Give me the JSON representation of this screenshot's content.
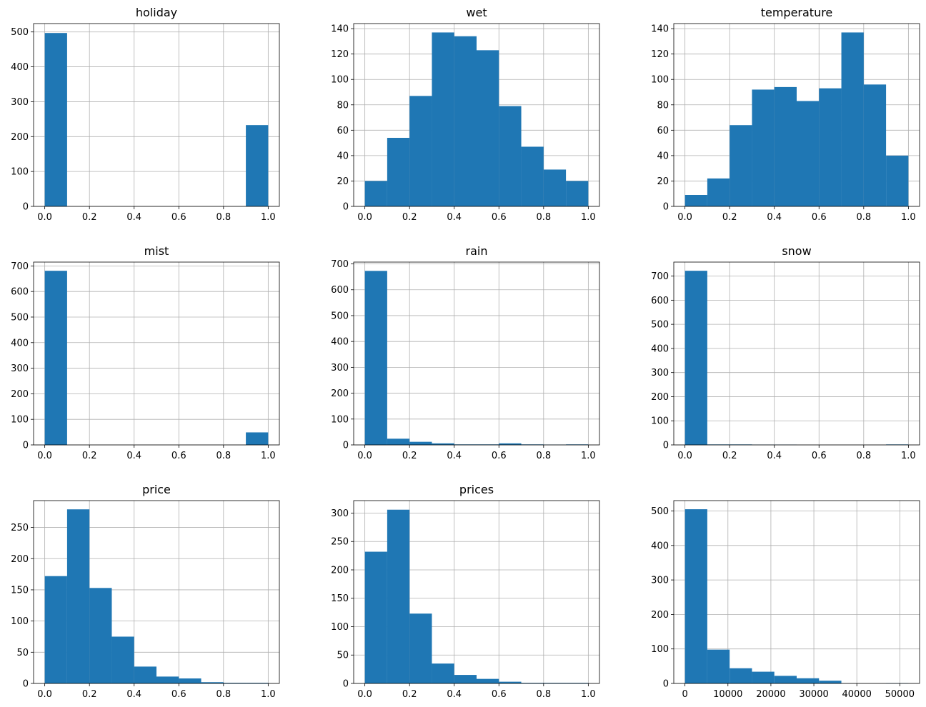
{
  "style": {
    "bar_color": "#1f77b4",
    "grid_color": "#b0b0b0",
    "axis_color": "#000000",
    "background": "#ffffff"
  },
  "chart_data": [
    {
      "type": "bar",
      "title": "holiday",
      "bin_edges": [
        0,
        0.1,
        0.2,
        0.3,
        0.4,
        0.5,
        0.6,
        0.7,
        0.8,
        0.9,
        1.0
      ],
      "values": [
        497,
        0,
        0,
        0,
        0,
        0,
        0,
        0,
        0,
        233
      ],
      "xlim": [
        -0.05,
        1.05
      ],
      "ylim": [
        0,
        524
      ],
      "xticks": [
        0,
        0.2,
        0.4,
        0.6,
        0.8,
        1.0
      ],
      "xtick_labels": [
        "0.0",
        "0.2",
        "0.4",
        "0.6",
        "0.8",
        "1.0"
      ],
      "yticks": [
        0,
        100,
        200,
        300,
        400,
        500
      ],
      "ytick_labels": [
        "0",
        "100",
        "200",
        "300",
        "400",
        "500"
      ],
      "grid": true
    },
    {
      "type": "bar",
      "title": "wet",
      "bin_edges": [
        0,
        0.1,
        0.2,
        0.3,
        0.4,
        0.5,
        0.6,
        0.7,
        0.8,
        0.9,
        1.0
      ],
      "values": [
        20,
        54,
        87,
        137,
        134,
        123,
        79,
        47,
        29,
        20
      ],
      "xlim": [
        -0.05,
        1.05
      ],
      "ylim": [
        0,
        144
      ],
      "xticks": [
        0,
        0.2,
        0.4,
        0.6,
        0.8,
        1.0
      ],
      "xtick_labels": [
        "0.0",
        "0.2",
        "0.4",
        "0.6",
        "0.8",
        "1.0"
      ],
      "yticks": [
        0,
        20,
        40,
        60,
        80,
        100,
        120,
        140
      ],
      "ytick_labels": [
        "0",
        "20",
        "40",
        "60",
        "80",
        "100",
        "120",
        "140"
      ],
      "grid": true
    },
    {
      "type": "bar",
      "title": "temperature",
      "bin_edges": [
        0,
        0.1,
        0.2,
        0.3,
        0.4,
        0.5,
        0.6,
        0.7,
        0.8,
        0.9,
        1.0
      ],
      "values": [
        9,
        22,
        64,
        92,
        94,
        83,
        93,
        137,
        96,
        40
      ],
      "xlim": [
        -0.05,
        1.05
      ],
      "ylim": [
        0,
        144
      ],
      "xticks": [
        0,
        0.2,
        0.4,
        0.6,
        0.8,
        1.0
      ],
      "xtick_labels": [
        "0.0",
        "0.2",
        "0.4",
        "0.6",
        "0.8",
        "1.0"
      ],
      "yticks": [
        0,
        20,
        40,
        60,
        80,
        100,
        120,
        140
      ],
      "ytick_labels": [
        "0",
        "20",
        "40",
        "60",
        "80",
        "100",
        "120",
        "140"
      ],
      "grid": true
    },
    {
      "type": "bar",
      "title": "mist",
      "bin_edges": [
        0,
        0.1,
        0.2,
        0.3,
        0.4,
        0.5,
        0.6,
        0.7,
        0.8,
        0.9,
        1.0
      ],
      "values": [
        681,
        0,
        0,
        0,
        0,
        0,
        0,
        0,
        0,
        49
      ],
      "xlim": [
        -0.05,
        1.05
      ],
      "ylim": [
        0,
        715
      ],
      "xticks": [
        0,
        0.2,
        0.4,
        0.6,
        0.8,
        1.0
      ],
      "xtick_labels": [
        "0.0",
        "0.2",
        "0.4",
        "0.6",
        "0.8",
        "1.0"
      ],
      "yticks": [
        0,
        100,
        200,
        300,
        400,
        500,
        600,
        700
      ],
      "ytick_labels": [
        "0",
        "100",
        "200",
        "300",
        "400",
        "500",
        "600",
        "700"
      ],
      "grid": true
    },
    {
      "type": "bar",
      "title": "rain",
      "bin_edges": [
        0,
        0.1,
        0.2,
        0.3,
        0.4,
        0.5,
        0.6,
        0.7,
        0.8,
        0.9,
        1.0
      ],
      "values": [
        673,
        24,
        12,
        6,
        2,
        2,
        6,
        2,
        1,
        2
      ],
      "xlim": [
        -0.05,
        1.05
      ],
      "ylim": [
        0,
        707
      ],
      "xticks": [
        0,
        0.2,
        0.4,
        0.6,
        0.8,
        1.0
      ],
      "xtick_labels": [
        "0.0",
        "0.2",
        "0.4",
        "0.6",
        "0.8",
        "1.0"
      ],
      "yticks": [
        0,
        100,
        200,
        300,
        400,
        500,
        600,
        700
      ],
      "ytick_labels": [
        "0",
        "100",
        "200",
        "300",
        "400",
        "500",
        "600",
        "700"
      ],
      "grid": true
    },
    {
      "type": "bar",
      "title": "snow",
      "bin_edges": [
        0,
        0.1,
        0.2,
        0.3,
        0.4,
        0.5,
        0.6,
        0.7,
        0.8,
        0.9,
        1.0
      ],
      "values": [
        722,
        2,
        2,
        1,
        1,
        0,
        0,
        0,
        0,
        2
      ],
      "xlim": [
        -0.05,
        1.05
      ],
      "ylim": [
        0,
        758
      ],
      "xticks": [
        0,
        0.2,
        0.4,
        0.6,
        0.8,
        1.0
      ],
      "xtick_labels": [
        "0.0",
        "0.2",
        "0.4",
        "0.6",
        "0.8",
        "1.0"
      ],
      "yticks": [
        0,
        100,
        200,
        300,
        400,
        500,
        600,
        700
      ],
      "ytick_labels": [
        "0",
        "100",
        "200",
        "300",
        "400",
        "500",
        "600",
        "700"
      ],
      "grid": true
    },
    {
      "type": "bar",
      "title": "price",
      "bin_edges": [
        0,
        0.1,
        0.2,
        0.3,
        0.4,
        0.5,
        0.6,
        0.7,
        0.8,
        0.9,
        1.0
      ],
      "values": [
        172,
        279,
        153,
        75,
        27,
        11,
        8,
        2,
        1,
        1
      ],
      "xlim": [
        -0.05,
        1.05
      ],
      "ylim": [
        0,
        293
      ],
      "xticks": [
        0,
        0.2,
        0.4,
        0.6,
        0.8,
        1.0
      ],
      "xtick_labels": [
        "0.0",
        "0.2",
        "0.4",
        "0.6",
        "0.8",
        "1.0"
      ],
      "yticks": [
        0,
        50,
        100,
        150,
        200,
        250
      ],
      "ytick_labels": [
        "0",
        "50",
        "100",
        "150",
        "200",
        "250"
      ],
      "grid": true
    },
    {
      "type": "bar",
      "title": "prices",
      "bin_edges": [
        0,
        0.1,
        0.2,
        0.3,
        0.4,
        0.5,
        0.6,
        0.7,
        0.8,
        0.9,
        1.0
      ],
      "values": [
        232,
        306,
        123,
        35,
        15,
        8,
        3,
        1,
        1,
        1
      ],
      "xlim": [
        -0.05,
        1.05
      ],
      "ylim": [
        0,
        322
      ],
      "xticks": [
        0,
        0.2,
        0.4,
        0.6,
        0.8,
        1.0
      ],
      "xtick_labels": [
        "0.0",
        "0.2",
        "0.4",
        "0.6",
        "0.8",
        "1.0"
      ],
      "yticks": [
        0,
        50,
        100,
        150,
        200,
        250,
        300
      ],
      "ytick_labels": [
        "0",
        "50",
        "100",
        "150",
        "200",
        "250",
        "300"
      ],
      "grid": true
    },
    {
      "type": "bar",
      "title": "",
      "bin_edges": [
        0,
        5200,
        10400,
        15600,
        20800,
        26000,
        31200,
        36400,
        41600,
        46800,
        52000
      ],
      "values": [
        505,
        98,
        44,
        34,
        22,
        15,
        8,
        0,
        0,
        1
      ],
      "xlim": [
        -2600,
        54600
      ],
      "ylim": [
        0,
        530
      ],
      "xticks": [
        0,
        10000,
        20000,
        30000,
        40000,
        50000
      ],
      "xtick_labels": [
        "0",
        "10000",
        "20000",
        "30000",
        "40000",
        "50000"
      ],
      "yticks": [
        0,
        100,
        200,
        300,
        400,
        500
      ],
      "ytick_labels": [
        "0",
        "100",
        "200",
        "300",
        "400",
        "500"
      ],
      "grid": true
    }
  ]
}
